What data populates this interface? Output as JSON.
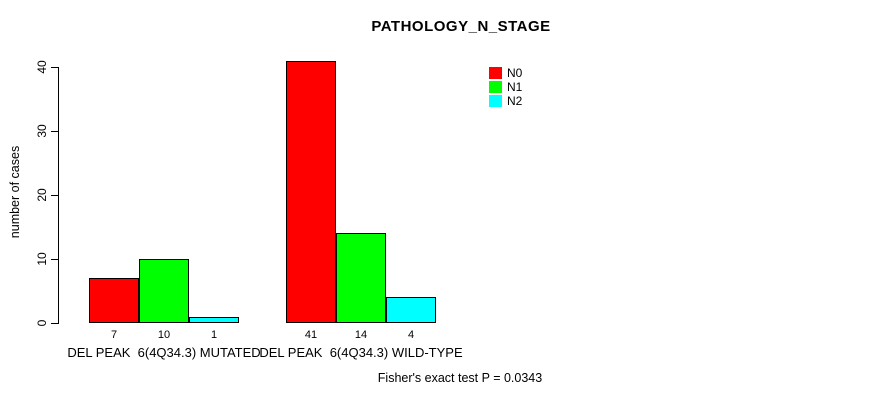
{
  "title": "PATHOLOGY_N_STAGE",
  "caption": "Fisher's exact test P = 0.0343",
  "colors": {
    "n0": "#FF0000",
    "n1": "#00FF00",
    "n2": "#00FFFF",
    "axis": "#000000",
    "background": "#FFFFFF"
  },
  "chart_data": {
    "type": "bar",
    "title": "PATHOLOGY_N_STAGE",
    "xlabel": "",
    "ylabel": "number of cases",
    "ylim": [
      0,
      40
    ],
    "yticks": [
      0,
      10,
      20,
      30,
      40
    ],
    "grid": false,
    "legend_position": "top-right",
    "categories": [
      "DEL PEAK  6(4Q34.3) MUTATED",
      "DEL PEAK  6(4Q34.3) WILD-TYPE"
    ],
    "series": [
      {
        "name": "N0",
        "color": "#FF0000",
        "values": [
          7,
          41
        ]
      },
      {
        "name": "N1",
        "color": "#00FF00",
        "values": [
          10,
          14
        ]
      },
      {
        "name": "N2",
        "color": "#00FFFF",
        "values": [
          1,
          4
        ]
      }
    ],
    "bar_value_labels": [
      [
        "7",
        "10",
        "1"
      ],
      [
        "41",
        "14",
        "4"
      ]
    ],
    "annotation": "Fisher's exact test P = 0.0343"
  }
}
